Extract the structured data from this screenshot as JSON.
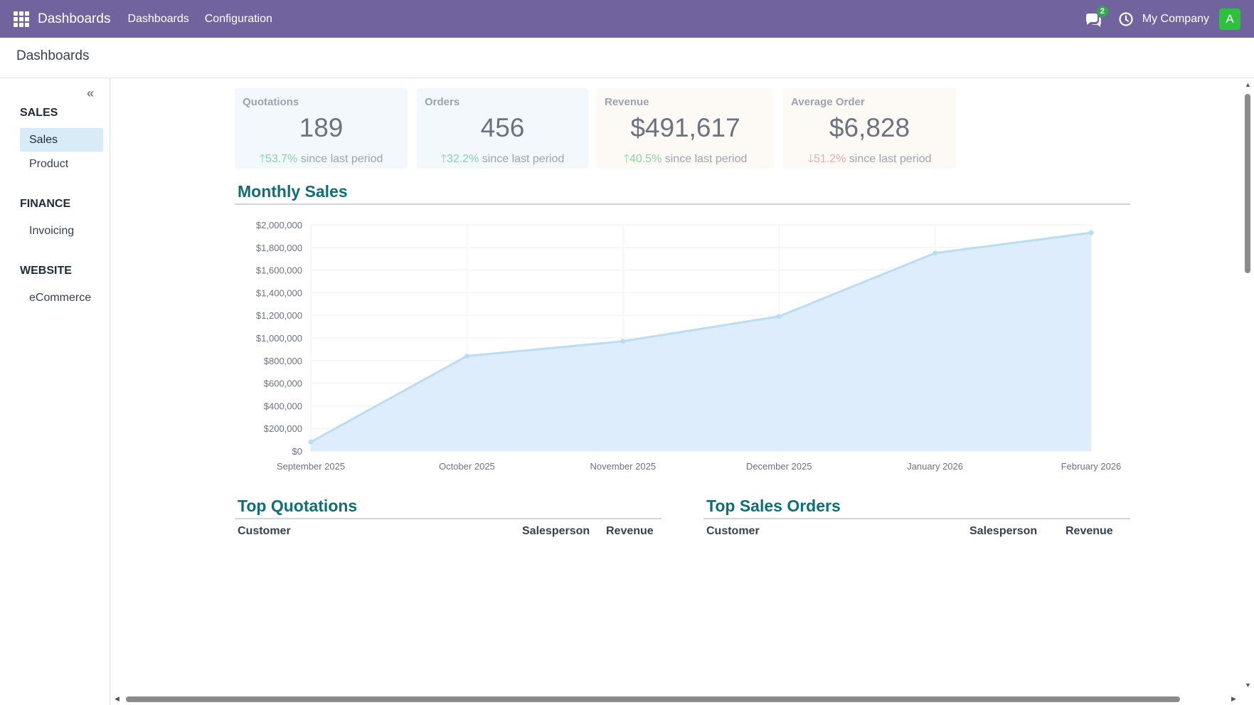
{
  "navbar": {
    "app_title": "Dashboards",
    "menu": [
      "Dashboards",
      "Configuration"
    ],
    "messages_badge": "2",
    "company": "My Company",
    "avatar_letter": "A",
    "colors": {
      "bar": "#71639e",
      "avatar": "#2fbf3f",
      "badge": "#2fa84f"
    }
  },
  "breadcrumb": "Dashboards",
  "sidebar": {
    "sections": [
      {
        "title": "SALES",
        "items": [
          {
            "label": "Sales",
            "active": true
          },
          {
            "label": "Product",
            "active": false
          }
        ]
      },
      {
        "title": "FINANCE",
        "items": [
          {
            "label": "Invoicing",
            "active": false
          }
        ]
      },
      {
        "title": "WEBSITE",
        "items": [
          {
            "label": "eCommerce",
            "active": false
          }
        ]
      }
    ]
  },
  "kpis": [
    {
      "title": "Quotations",
      "value": "189",
      "direction": "up",
      "change": "53.7%",
      "suffix": "since last period",
      "bg": "#f3f8fc"
    },
    {
      "title": "Orders",
      "value": "456",
      "direction": "up",
      "change": "32.2%",
      "suffix": "since last period",
      "bg": "#f3f8fc"
    },
    {
      "title": "Revenue",
      "value": "$491,617",
      "direction": "up",
      "change": "40.5%",
      "suffix": "since last period",
      "bg": "#fdf9f4"
    },
    {
      "title": "Average Order",
      "value": "$6,828",
      "direction": "down",
      "change": "51.2%",
      "suffix": "since last period",
      "bg": "#fdf9f4"
    }
  ],
  "monthly_sales": {
    "heading": "Monthly Sales"
  },
  "chart_data": {
    "type": "area",
    "title": "Monthly Sales",
    "categories": [
      "September 2025",
      "October 2025",
      "November 2025",
      "December 2025",
      "January 2026",
      "February 2026"
    ],
    "values": [
      80000,
      840000,
      970000,
      1190000,
      1750000,
      1930000
    ],
    "ylim": [
      0,
      2000000
    ],
    "yticks": [
      0,
      200000,
      400000,
      600000,
      800000,
      1000000,
      1200000,
      1400000,
      1600000,
      1800000,
      2000000
    ],
    "ytick_labels": [
      "$0",
      "$200,000",
      "$400,000",
      "$600,000",
      "$800,000",
      "$1,000,000",
      "$1,200,000",
      "$1,400,000",
      "$1,600,000",
      "$1,800,000",
      "$2,000,000"
    ],
    "grid": true,
    "line_color": "#bcdcf4",
    "fill_color": "#ddedfb"
  },
  "top_quotations": {
    "heading": "Top Quotations",
    "columns": [
      "Customer",
      "Salesperson",
      "Revenue"
    ]
  },
  "top_sales_orders": {
    "heading": "Top Sales Orders",
    "columns": [
      "Customer",
      "Salesperson",
      "Revenue"
    ]
  }
}
